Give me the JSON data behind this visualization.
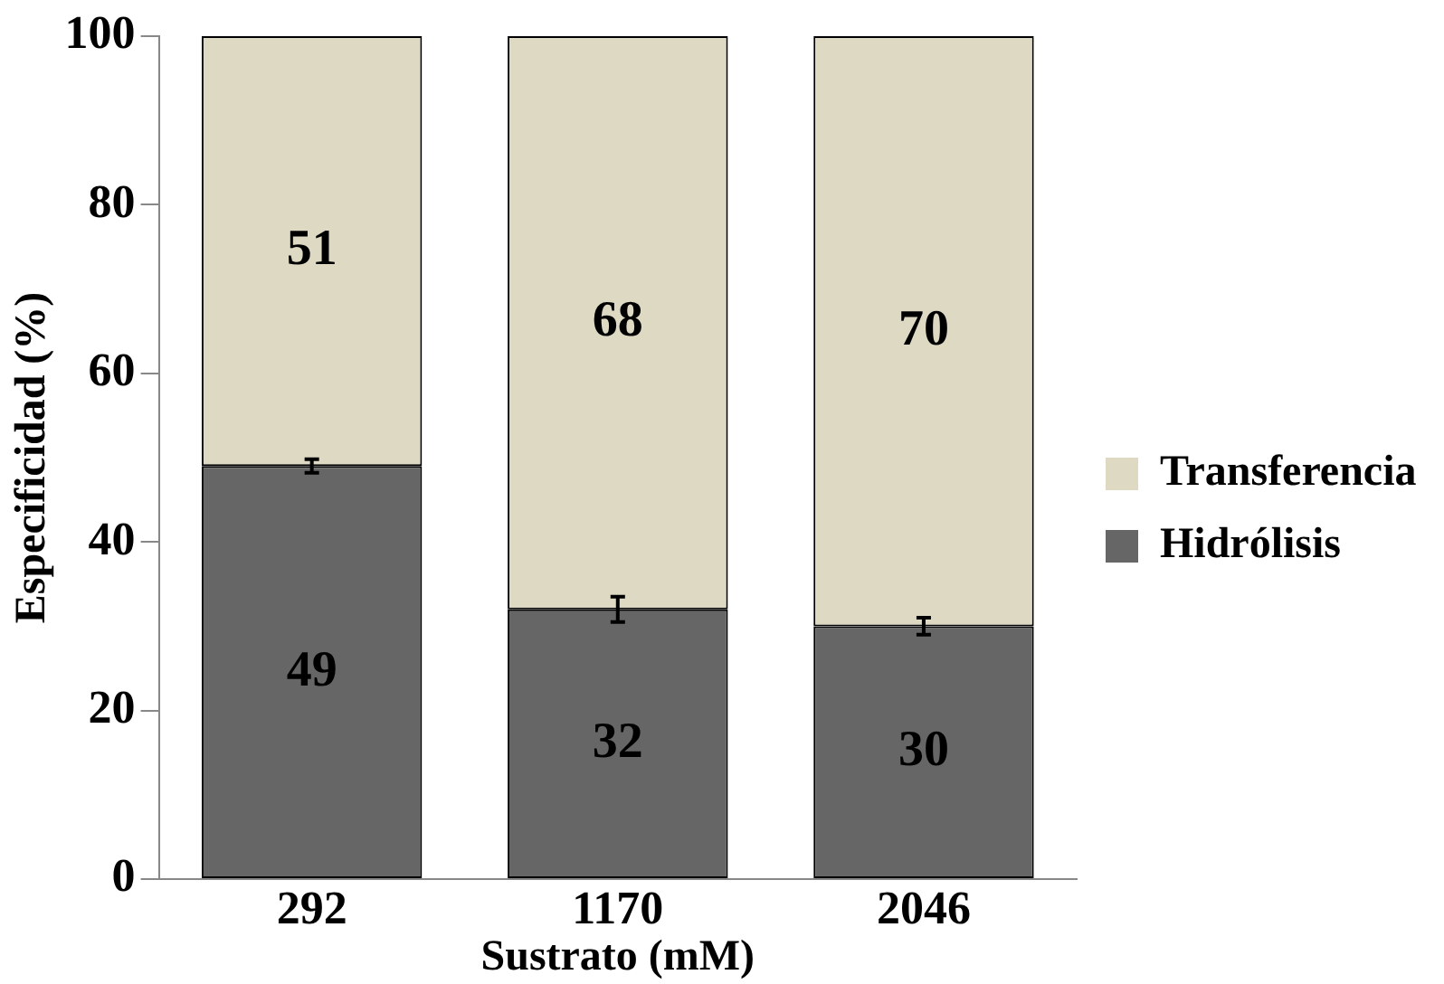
{
  "chart_data": {
    "type": "bar",
    "stacked": true,
    "xlabel": "Sustrato (mM)",
    "ylabel": "Especificidad (%)",
    "categories": [
      "292",
      "1170",
      "2046"
    ],
    "series": [
      {
        "name": "Hidrólisis",
        "color": "#666666",
        "values": [
          49,
          32,
          30
        ],
        "errors": [
          0.8,
          1.5,
          1
        ]
      },
      {
        "name": "Transferencia",
        "color": "#ddd9c3",
        "values": [
          51,
          68,
          70
        ]
      }
    ],
    "ylim": [
      0,
      100
    ],
    "yticks": [
      0,
      20,
      40,
      60,
      80,
      100
    ],
    "grid": false,
    "legend": "right",
    "data_labels": true
  }
}
